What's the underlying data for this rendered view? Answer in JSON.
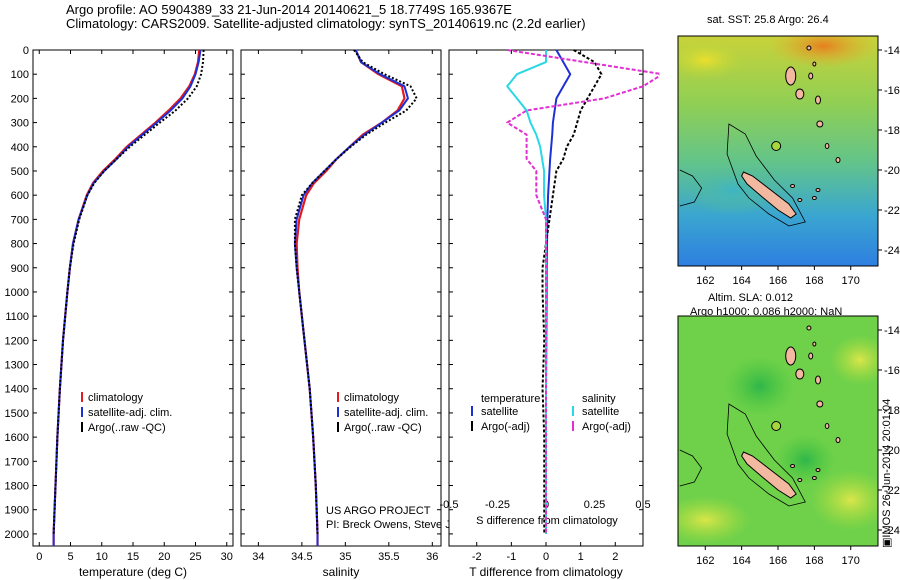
{
  "header": {
    "line1": "Argo profile: AO 5904389_33 21-Jun-2014 20140621_5 18.7749S 165.9367E",
    "line2": "Climatology: CARS2009. Satellite-adjusted climatology: synTS_20140619.nc (2.2d earlier)"
  },
  "colors": {
    "climatology": "#e41a1c",
    "satellite": "#1f2fd6",
    "argo": "#000000",
    "sal_satellite": "#2bd7e6",
    "sal_argo": "#e22fd2"
  },
  "chart_data": [
    {
      "type": "line",
      "id": "temperature",
      "xlabel": "temperature (deg C)",
      "ylabel": "",
      "xlim": [
        -1,
        31
      ],
      "ylim": [
        2050,
        0
      ],
      "xticks": [
        0,
        5,
        10,
        15,
        20,
        25,
        30
      ],
      "yticks": [
        0,
        100,
        200,
        300,
        400,
        500,
        600,
        700,
        800,
        900,
        1000,
        1100,
        1200,
        1300,
        1400,
        1500,
        1600,
        1700,
        1800,
        1900,
        2000
      ],
      "depth": [
        0,
        50,
        100,
        150,
        200,
        250,
        300,
        350,
        400,
        450,
        500,
        550,
        600,
        700,
        800,
        900,
        1000,
        1200,
        1400,
        1600,
        1800,
        2000,
        2050
      ],
      "series": [
        {
          "name": "climatology",
          "values": [
            25.6,
            25.4,
            24.9,
            24.0,
            22.6,
            20.7,
            18.6,
            16.3,
            14.0,
            12.2,
            10.2,
            8.6,
            7.6,
            6.3,
            5.4,
            4.9,
            4.5,
            3.8,
            3.3,
            2.9,
            2.6,
            2.3,
            2.3
          ]
        },
        {
          "name": "satellite-adj. clim.",
          "values": [
            25.8,
            25.5,
            25.0,
            24.2,
            22.9,
            21.0,
            18.8,
            16.5,
            14.2,
            12.4,
            10.4,
            8.7,
            7.7,
            6.3,
            5.4,
            4.9,
            4.5,
            3.8,
            3.3,
            2.9,
            2.6,
            2.3,
            2.3
          ]
        },
        {
          "name": "Argo(..raw -QC)",
          "values": [
            26.3,
            26.2,
            25.9,
            25.2,
            23.8,
            21.8,
            19.3,
            16.9,
            14.5,
            12.4,
            10.4,
            8.8,
            7.7,
            6.4,
            5.5,
            4.9,
            4.5,
            3.8,
            3.3,
            2.9,
            2.6,
            2.3,
            null
          ]
        }
      ],
      "legend": [
        "climatology",
        "satellite-adj. clim.",
        "Argo(..raw -QC)"
      ]
    },
    {
      "type": "line",
      "id": "salinity",
      "xlabel": "salinity",
      "xlim": [
        33.8,
        36.1
      ],
      "ylim": [
        2050,
        0
      ],
      "xticks": [
        34,
        34.5,
        35,
        35.5,
        36
      ],
      "depth": [
        0,
        50,
        100,
        150,
        200,
        250,
        300,
        350,
        400,
        450,
        500,
        550,
        600,
        700,
        800,
        900,
        1000,
        1200,
        1400,
        1600,
        1800,
        2000,
        2050
      ],
      "series": [
        {
          "name": "climatology",
          "values": [
            35.12,
            35.18,
            35.38,
            35.65,
            35.68,
            35.6,
            35.42,
            35.2,
            35.05,
            34.9,
            34.78,
            34.64,
            34.55,
            34.47,
            34.44,
            34.45,
            34.47,
            34.53,
            34.59,
            34.63,
            34.66,
            34.68,
            34.68
          ]
        },
        {
          "name": "satellite-adj. clim.",
          "values": [
            35.12,
            35.18,
            35.4,
            35.68,
            35.72,
            35.62,
            35.42,
            35.22,
            35.05,
            34.9,
            34.76,
            34.62,
            34.52,
            34.44,
            34.42,
            34.44,
            34.47,
            34.53,
            34.59,
            34.63,
            34.66,
            34.68,
            34.68
          ]
        },
        {
          "name": "Argo(..raw -QC)",
          "values": [
            35.1,
            35.2,
            35.45,
            35.75,
            35.82,
            35.7,
            35.46,
            35.24,
            35.06,
            34.9,
            34.76,
            34.62,
            34.5,
            34.42,
            34.42,
            34.44,
            34.47,
            34.53,
            34.59,
            34.63,
            34.66,
            34.68,
            null
          ]
        }
      ],
      "legend": [
        "climatology",
        "satellite-adj. clim.",
        "Argo(..raw -QC)"
      ],
      "annotations": [
        "US ARGO PROJECT",
        "PI: Breck Owens, Steve Jayne, and P.E. Robbi"
      ]
    },
    {
      "type": "line",
      "id": "difference",
      "xlabel": "T difference from climatology",
      "xlim": [
        -2.8,
        2.8
      ],
      "ylim": [
        2050,
        0
      ],
      "xticks": [
        -2,
        -1,
        0,
        1,
        2
      ],
      "xtick_labels": [
        "-2",
        "-1",
        "0",
        "1",
        "2"
      ],
      "top_xticks": [
        -0.5,
        -0.25,
        0,
        0.25,
        0.5
      ],
      "top_xtick_labels": [
        "-0.5",
        "-0.25",
        "0",
        "0.25",
        "0.5"
      ],
      "top_xlabel": "S difference from climatology",
      "depth": [
        0,
        50,
        100,
        150,
        200,
        250,
        300,
        350,
        400,
        450,
        500,
        600,
        700,
        800,
        900,
        1000,
        1200,
        1400,
        1600,
        1800,
        2000
      ],
      "series": [
        {
          "name": "temperature satellite",
          "values": [
            0.3,
            0.5,
            0.7,
            0.5,
            0.3,
            0.25,
            0.2,
            0.18,
            0.15,
            0.12,
            0.1,
            0.06,
            0.04,
            0.03,
            0.02,
            0.02,
            0.01,
            0.0,
            0.0,
            0.0,
            0.0
          ]
        },
        {
          "name": "temperature Argo(-adj)",
          "values": [
            0.8,
            1.4,
            1.6,
            1.4,
            1.2,
            1.0,
            0.9,
            0.8,
            0.6,
            0.5,
            0.3,
            0.2,
            0.1,
            0.0,
            -0.1,
            -0.1,
            -0.05,
            -0.1,
            -0.05,
            -0.05,
            -0.05
          ]
        },
        {
          "name": "salinity satellite",
          "values": [
            0.0,
            0.0,
            -0.15,
            -0.2,
            -0.15,
            -0.1,
            -0.08,
            -0.05,
            -0.03,
            -0.02,
            -0.01,
            -0.01,
            0.0,
            0.0,
            0.0,
            0.0,
            0.0,
            0.0,
            0.0,
            0.0,
            0.0
          ]
        },
        {
          "name": "salinity Argo(-adj)",
          "values": [
            -0.2,
            0.2,
            0.6,
            0.5,
            0.3,
            -0.1,
            -0.2,
            -0.1,
            -0.1,
            -0.1,
            -0.05,
            -0.05,
            0.0,
            0.0,
            0.0,
            0.0,
            0.0,
            0.0,
            0.0,
            0.0,
            0.0
          ]
        }
      ],
      "legend": {
        "temperature_header": "temperature",
        "salinity_header": "salinity",
        "temperature": [
          "satellite",
          "Argo(-adj)"
        ],
        "salinity": [
          "satellite",
          "Argo(-adj)"
        ]
      }
    },
    {
      "type": "heatmap",
      "id": "sst_map",
      "title": "sat. SST: 25.8 Argo: 26.4",
      "xlim": [
        160.5,
        171.5
      ],
      "ylim": [
        -24.8,
        -13.3
      ],
      "xticks": [
        162,
        164,
        166,
        168,
        170
      ],
      "yticks": [
        -14,
        -16,
        -18,
        -20,
        -22,
        -24
      ],
      "marker": {
        "lon": 165.9,
        "lat": -18.8
      }
    },
    {
      "type": "heatmap",
      "id": "sla_map",
      "title_line1": "Altim. SLA: 0.012",
      "title_line2": "Argo h1000: 0.086 h2000: NaN",
      "xlim": [
        160.5,
        171.5
      ],
      "ylim": [
        -24.8,
        -13.3
      ],
      "xticks": [
        162,
        164,
        166,
        168,
        170
      ],
      "yticks": [
        -14,
        -16,
        -18,
        -20,
        -22,
        -24
      ],
      "marker": {
        "lon": 165.9,
        "lat": -18.8
      }
    }
  ],
  "footer": {
    "imos_label": "▣IMOS 26-Jun-2014 20:01:04"
  }
}
